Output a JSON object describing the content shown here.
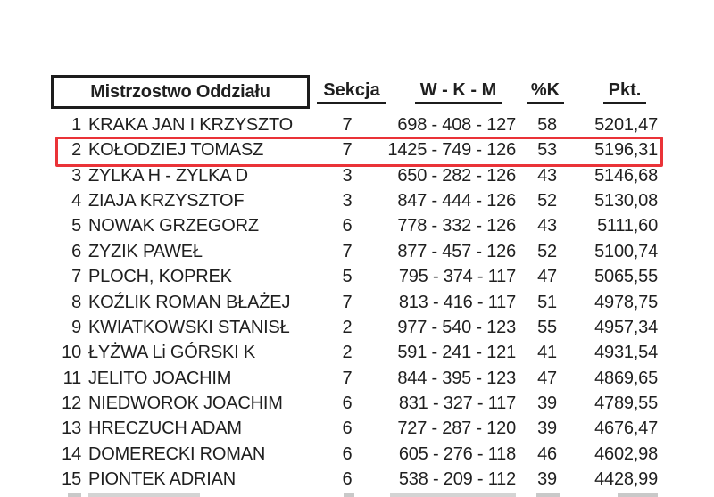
{
  "page": {
    "background": "#ffffff",
    "text_color": "#1f1f1f",
    "highlight_color": "#ea3338"
  },
  "table": {
    "title": "Mistrzostwo Oddziału",
    "columns": {
      "sekcja": "Sekcja",
      "wkm": "W - K - M",
      "pk": "%K",
      "pkt": "Pkt."
    },
    "highlighted_rank": "2",
    "rows": [
      {
        "rank": "1",
        "name": "KRAKA JAN I KRZYSZTO",
        "sekcja": "7",
        "wkm": "698 - 408 - 127",
        "pk": "58",
        "pkt": "5201,47"
      },
      {
        "rank": "2",
        "name": "KOŁODZIEJ TOMASZ",
        "sekcja": "7",
        "wkm": "1425 - 749 - 126",
        "pk": "53",
        "pkt": "5196,31"
      },
      {
        "rank": "3",
        "name": "ZYLKA H - ZYLKA D",
        "sekcja": "3",
        "wkm": "650 - 282 - 126",
        "pk": "43",
        "pkt": "5146,68"
      },
      {
        "rank": "4",
        "name": "ZIAJA KRZYSZTOF",
        "sekcja": "3",
        "wkm": "847 - 444 - 126",
        "pk": "52",
        "pkt": "5130,08"
      },
      {
        "rank": "5",
        "name": "NOWAK GRZEGORZ",
        "sekcja": "6",
        "wkm": "778 - 332 - 126",
        "pk": "43",
        "pkt": "5111,60"
      },
      {
        "rank": "6",
        "name": "ZYZIK PAWEŁ",
        "sekcja": "7",
        "wkm": "877 - 457 - 126",
        "pk": "52",
        "pkt": "5100,74"
      },
      {
        "rank": "7",
        "name": "PLOCH, KOPREK",
        "sekcja": "5",
        "wkm": "795 - 374 - 117",
        "pk": "47",
        "pkt": "5065,55"
      },
      {
        "rank": "8",
        "name": "KOŹLIK ROMAN BŁAŻEJ",
        "sekcja": "7",
        "wkm": "813 - 416 - 117",
        "pk": "51",
        "pkt": "4978,75"
      },
      {
        "rank": "9",
        "name": "KWIATKOWSKI STANISŁ",
        "sekcja": "2",
        "wkm": "977 - 540 - 123",
        "pk": "55",
        "pkt": "4957,34"
      },
      {
        "rank": "10",
        "name": "ŁYŻWA Li GÓRSKI K",
        "sekcja": "2",
        "wkm": "591 - 241 - 121",
        "pk": "41",
        "pkt": "4931,54"
      },
      {
        "rank": "11",
        "name": "JELITO JOACHIM",
        "sekcja": "7",
        "wkm": "844 - 395 - 123",
        "pk": "47",
        "pkt": "4869,65"
      },
      {
        "rank": "12",
        "name": "NIEDWOROK JOACHIM",
        "sekcja": "6",
        "wkm": "831 - 327 - 117",
        "pk": "39",
        "pkt": "4789,55"
      },
      {
        "rank": "13",
        "name": "HRECZUCH ADAM",
        "sekcja": "6",
        "wkm": "727 - 287 - 120",
        "pk": "39",
        "pkt": "4676,47"
      },
      {
        "rank": "14",
        "name": "DOMERECKI ROMAN",
        "sekcja": "6",
        "wkm": "605 - 276 - 118",
        "pk": "46",
        "pkt": "4602,98"
      },
      {
        "rank": "15",
        "name": "PIONTEK ADRIAN",
        "sekcja": "6",
        "wkm": "538 - 209 - 112",
        "pk": "39",
        "pkt": "4428,99"
      }
    ]
  }
}
